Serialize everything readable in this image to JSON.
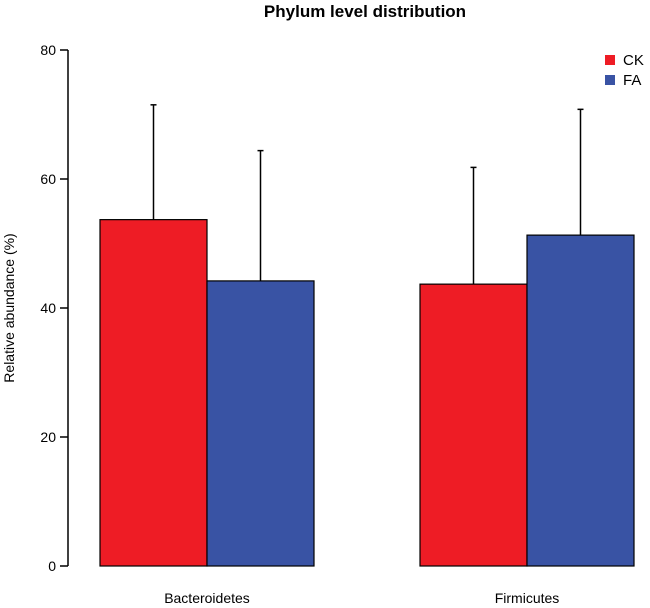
{
  "chart_data": {
    "type": "bar",
    "title": "Phylum level distribution",
    "xlabel": "",
    "ylabel": "Relative abundance (%)",
    "ylim": [
      0,
      80
    ],
    "yticks": [
      0,
      20,
      40,
      60,
      80
    ],
    "categories": [
      "Bacteroidetes",
      "Firmicutes"
    ],
    "series": [
      {
        "name": "CK",
        "color": "#ee1c25",
        "values": [
          53.7,
          43.7
        ],
        "error_upper": [
          71.5,
          61.8
        ]
      },
      {
        "name": "FA",
        "color": "#3953a4",
        "values": [
          44.2,
          51.3
        ],
        "error_upper": [
          64.4,
          70.8
        ]
      }
    ],
    "legend_position": "top-right",
    "grid": false
  }
}
